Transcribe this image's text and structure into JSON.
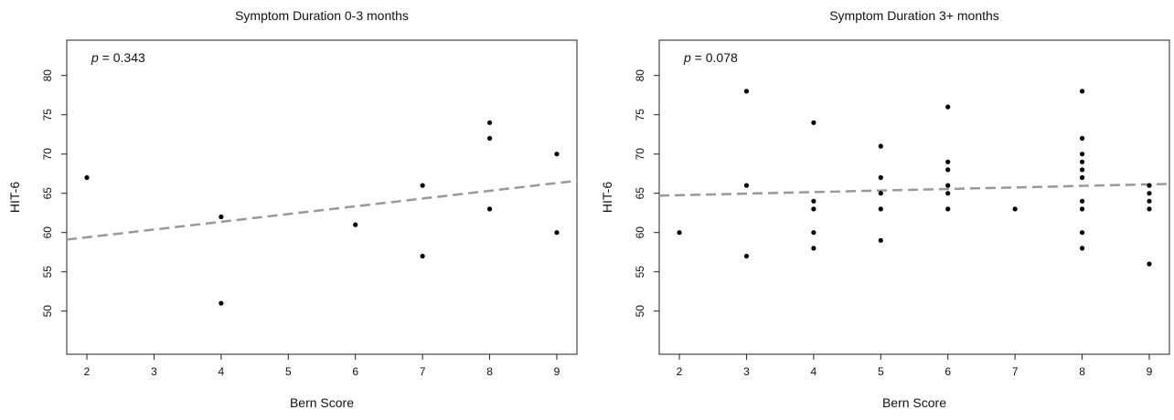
{
  "colors": {
    "points": "#000000",
    "fit_line": "#999999",
    "axis": "#222222"
  },
  "chart_data": [
    {
      "type": "scatter",
      "title": "Symptom Duration 0-3 months",
      "xlabel": "Bern Score",
      "ylabel": "HIT-6",
      "annotation": {
        "label": "p",
        "text": " = 0.343"
      },
      "xlim": [
        1.7,
        9.3
      ],
      "ylim": [
        44.5,
        84.5
      ],
      "xticks": [
        2,
        3,
        4,
        5,
        6,
        7,
        8,
        9
      ],
      "yticks": [
        50,
        55,
        60,
        65,
        70,
        75,
        80
      ],
      "grid": false,
      "legend": "none",
      "points": [
        {
          "x": 2,
          "y": 67
        },
        {
          "x": 4,
          "y": 62
        },
        {
          "x": 4,
          "y": 51
        },
        {
          "x": 6,
          "y": 61
        },
        {
          "x": 7,
          "y": 66
        },
        {
          "x": 7,
          "y": 57
        },
        {
          "x": 8,
          "y": 74
        },
        {
          "x": 8,
          "y": 72
        },
        {
          "x": 8,
          "y": 63
        },
        {
          "x": 9,
          "y": 70
        },
        {
          "x": 9,
          "y": 60
        }
      ],
      "fit_line": {
        "style": "dashed",
        "x0": 1.7,
        "y0": 59.1,
        "x1": 9.3,
        "y1": 66.6
      }
    },
    {
      "type": "scatter",
      "title": "Symptom Duration 3+ months",
      "xlabel": "Bern Score",
      "ylabel": "HIT-6",
      "annotation": {
        "label": "p",
        "text": " = 0.078"
      },
      "xlim": [
        1.7,
        9.3
      ],
      "ylim": [
        44.5,
        84.5
      ],
      "xticks": [
        2,
        3,
        4,
        5,
        6,
        7,
        8,
        9
      ],
      "yticks": [
        50,
        55,
        60,
        65,
        70,
        75,
        80
      ],
      "grid": false,
      "legend": "none",
      "points": [
        {
          "x": 2,
          "y": 60
        },
        {
          "x": 3,
          "y": 78
        },
        {
          "x": 3,
          "y": 66
        },
        {
          "x": 3,
          "y": 57
        },
        {
          "x": 4,
          "y": 74
        },
        {
          "x": 4,
          "y": 64
        },
        {
          "x": 4,
          "y": 63
        },
        {
          "x": 4,
          "y": 60
        },
        {
          "x": 4,
          "y": 58
        },
        {
          "x": 5,
          "y": 71
        },
        {
          "x": 5,
          "y": 67
        },
        {
          "x": 5,
          "y": 65
        },
        {
          "x": 5,
          "y": 63
        },
        {
          "x": 5,
          "y": 59
        },
        {
          "x": 6,
          "y": 76
        },
        {
          "x": 6,
          "y": 69
        },
        {
          "x": 6,
          "y": 68
        },
        {
          "x": 6,
          "y": 66
        },
        {
          "x": 6,
          "y": 65
        },
        {
          "x": 6,
          "y": 63
        },
        {
          "x": 7,
          "y": 63
        },
        {
          "x": 8,
          "y": 78
        },
        {
          "x": 8,
          "y": 72
        },
        {
          "x": 8,
          "y": 70
        },
        {
          "x": 8,
          "y": 69
        },
        {
          "x": 8,
          "y": 68
        },
        {
          "x": 8,
          "y": 67
        },
        {
          "x": 8,
          "y": 64
        },
        {
          "x": 8,
          "y": 63
        },
        {
          "x": 8,
          "y": 60
        },
        {
          "x": 8,
          "y": 58
        },
        {
          "x": 9,
          "y": 66
        },
        {
          "x": 9,
          "y": 65
        },
        {
          "x": 9,
          "y": 64
        },
        {
          "x": 9,
          "y": 63
        },
        {
          "x": 9,
          "y": 56
        }
      ],
      "fit_line": {
        "style": "dashed",
        "x0": 1.7,
        "y0": 64.7,
        "x1": 9.3,
        "y1": 66.2
      }
    }
  ]
}
